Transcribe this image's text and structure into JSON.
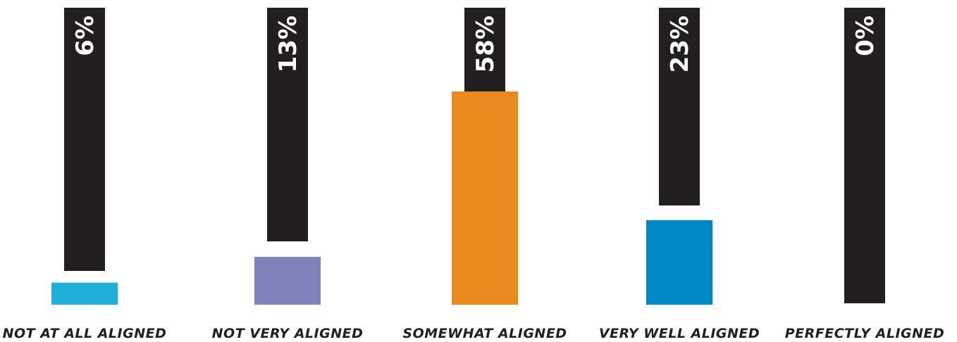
{
  "chart_data": {
    "type": "bar",
    "categories": [
      "NOT AT ALL ALIGNED",
      "NOT VERY ALIGNED",
      "SOMEWHAT ALIGNED",
      "VERY WELL ALIGNED",
      "PERFECTLY ALIGNED"
    ],
    "values": [
      6,
      13,
      58,
      23,
      0
    ],
    "value_labels": [
      "6%",
      "13%",
      "58%",
      "23%",
      "0%"
    ],
    "colors": [
      "#1fafd9",
      "#8080ba",
      "#e98a1e",
      "#0088c6",
      "#231f20"
    ],
    "track_color": "#231f20",
    "title": "",
    "xlabel": "",
    "ylabel": "",
    "ylim": [
      0,
      100
    ],
    "grid": false,
    "legend": "none"
  }
}
